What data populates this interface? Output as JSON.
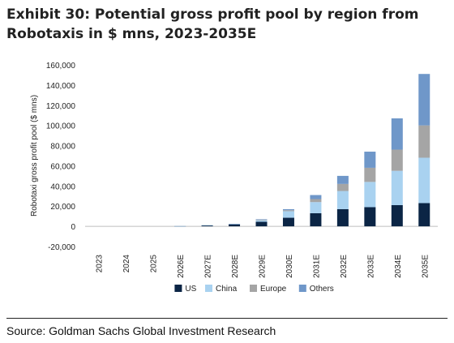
{
  "header": {
    "title_line1": "Exhibit 30: Potential gross profit pool by region from",
    "title_line2": "Robotaxis in $ mns, 2023-2035E"
  },
  "footer": {
    "source": "Source: Goldman Sachs Global Investment Research"
  },
  "chart_data": {
    "type": "bar",
    "stacked": true,
    "categories": [
      "2023",
      "2024",
      "2025",
      "2026E",
      "2027E",
      "2028E",
      "2029E",
      "2030E",
      "2031E",
      "2032E",
      "2033E",
      "2034E",
      "2035E"
    ],
    "series": [
      {
        "name": "US",
        "color": "#0b2545",
        "values": [
          0,
          0,
          0,
          200,
          1000,
          2000,
          4500,
          8500,
          13000,
          17000,
          19000,
          21000,
          23000
        ]
      },
      {
        "name": "China",
        "color": "#a9d2f0",
        "values": [
          0,
          0,
          0,
          100,
          200,
          300,
          1500,
          6500,
          11000,
          18000,
          25000,
          34000,
          45000
        ]
      },
      {
        "name": "Europe",
        "color": "#a5a5a5",
        "values": [
          0,
          0,
          0,
          0,
          0,
          100,
          500,
          1000,
          3000,
          7000,
          14000,
          21000,
          32000
        ]
      },
      {
        "name": "Others",
        "color": "#6f97c9",
        "values": [
          0,
          0,
          0,
          0,
          0,
          100,
          500,
          1000,
          4000,
          8000,
          16000,
          31000,
          51000
        ]
      }
    ],
    "ylabel": "Robotaxi gross profit pool ($ mns)",
    "ylim": [
      -20000,
      160000
    ],
    "yticks": [
      -20000,
      0,
      20000,
      40000,
      60000,
      80000,
      100000,
      120000,
      140000,
      160000
    ],
    "ytick_labels": [
      "-20,000",
      "0",
      "20,000",
      "40,000",
      "60,000",
      "80,000",
      "100,000",
      "120,000",
      "140,000",
      "160,000"
    ],
    "grid": false,
    "legend_position": "bottom"
  }
}
